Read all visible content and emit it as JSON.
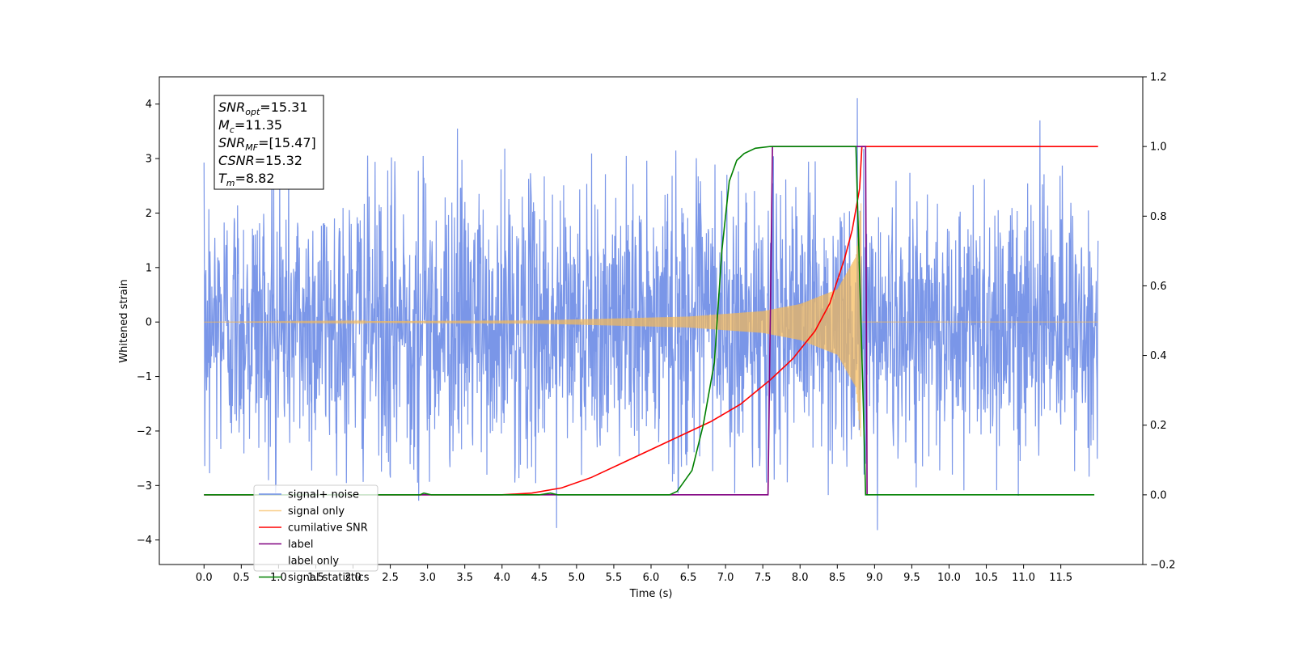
{
  "chart_data": {
    "type": "line",
    "xlabel": "Time (s)",
    "ylabel": "Whitened strain",
    "xlim": [
      -0.6,
      12.6
    ],
    "ylim": [
      -4.45,
      4.5
    ],
    "y2lim": [
      -0.2,
      1.2
    ],
    "x_ticks": [
      0.0,
      0.5,
      1.0,
      1.5,
      2.0,
      2.5,
      3.0,
      3.5,
      4.0,
      4.5,
      5.0,
      5.5,
      6.0,
      6.5,
      7.0,
      7.5,
      8.0,
      8.5,
      9.0,
      9.5,
      10.0,
      10.5,
      11.0,
      11.5
    ],
    "x_tick_labels": [
      "0.0",
      "0.5",
      "1.0",
      "1.5",
      "2.0",
      "2.5",
      "3.0",
      "3.5",
      "4.0",
      "4.5",
      "5.0",
      "5.5",
      "6.0",
      "6.5",
      "7.0",
      "7.5",
      "8.0",
      "8.5",
      "9.0",
      "9.5",
      "10.0",
      "10.5",
      "11.0",
      "11.5"
    ],
    "y_ticks": [
      -4,
      -3,
      -2,
      -1,
      0,
      1,
      2,
      3,
      4
    ],
    "y_tick_labels": [
      "−4",
      "−3",
      "−2",
      "−1",
      "0",
      "1",
      "2",
      "3",
      "4"
    ],
    "y2_ticks": [
      -0.2,
      0.0,
      0.2,
      0.4,
      0.6,
      0.8,
      1.0,
      1.2
    ],
    "y2_tick_labels": [
      "−0.2",
      "0.0",
      "0.2",
      "0.4",
      "0.6",
      "0.8",
      "1.0",
      "1.2"
    ],
    "legend_position": "lower-left",
    "grid": false,
    "series": [
      {
        "name": "signal+ noise",
        "color": "#6b8be6",
        "axis": "left",
        "kind": "noise",
        "x_range": [
          0.0,
          12.0
        ],
        "typical_envelope": [
          -2.3,
          2.3
        ],
        "extremes": [
          [
            2.88,
            -3.28
          ],
          [
            3.4,
            3.55
          ],
          [
            4.73,
            -3.78
          ],
          [
            8.77,
            4.11
          ],
          [
            9.04,
            -3.82
          ],
          [
            11.22,
            3.7
          ]
        ]
      },
      {
        "name": "signal only",
        "color": "#f6b955",
        "axis": "left",
        "kind": "chirp",
        "x_range": [
          0.0,
          12.0
        ],
        "merger_time": 8.82,
        "amplitude_at": [
          [
            4.5,
            0.03
          ],
          [
            6.5,
            0.1
          ],
          [
            7.5,
            0.2
          ],
          [
            8.0,
            0.33
          ],
          [
            8.5,
            0.6
          ],
          [
            8.75,
            1.2
          ],
          [
            8.82,
            2.2
          ]
        ]
      },
      {
        "name": "cumilative SNR",
        "color": "#ff0000",
        "axis": "right",
        "x": [
          0,
          4,
          4.4,
          4.8,
          5.2,
          5.6,
          6.0,
          6.4,
          6.8,
          7.2,
          7.6,
          7.9,
          8.2,
          8.4,
          8.6,
          8.7,
          8.8,
          8.83,
          12.0
        ],
        "y": [
          0,
          0,
          0.005,
          0.02,
          0.05,
          0.09,
          0.13,
          0.17,
          0.21,
          0.26,
          0.33,
          0.39,
          0.47,
          0.55,
          0.68,
          0.76,
          0.88,
          1.0,
          1.0
        ]
      },
      {
        "name": "label",
        "color": "#800080",
        "axis": "right",
        "x": [
          0,
          7.57,
          7.63,
          8.88,
          8.9
        ],
        "y": [
          0,
          0,
          1,
          1,
          0
        ]
      },
      {
        "name": "label only",
        "color": "#ffffff",
        "axis": "right",
        "hidden": true,
        "x": [],
        "y": []
      },
      {
        "name": "signal statistics",
        "color": "#008000",
        "axis": "right",
        "x": [
          0,
          2.9,
          2.95,
          3.05,
          4.5,
          4.65,
          4.75,
          6.25,
          6.35,
          6.55,
          6.7,
          6.85,
          6.95,
          7.05,
          7.15,
          7.25,
          7.4,
          7.6,
          8.0,
          8.75,
          8.85,
          8.88,
          11.95
        ],
        "y": [
          0,
          0,
          0.005,
          0,
          0,
          0.005,
          0,
          0,
          0.01,
          0.07,
          0.2,
          0.38,
          0.7,
          0.9,
          0.96,
          0.98,
          0.995,
          1.0,
          1.0,
          1.0,
          0.25,
          0,
          0
        ]
      }
    ],
    "annotation": {
      "lines": [
        {
          "base": "SNR",
          "sub": "opt",
          "value": "=15.31"
        },
        {
          "base": "M",
          "sub": "c",
          "value": "=11.35"
        },
        {
          "base": "SNR",
          "sub": "MF",
          "value": "=[15.47]"
        },
        {
          "base": "CSNR",
          "sub": "",
          "value": "=15.32"
        },
        {
          "base": "T",
          "sub": "m",
          "value": "=8.82"
        }
      ]
    }
  }
}
